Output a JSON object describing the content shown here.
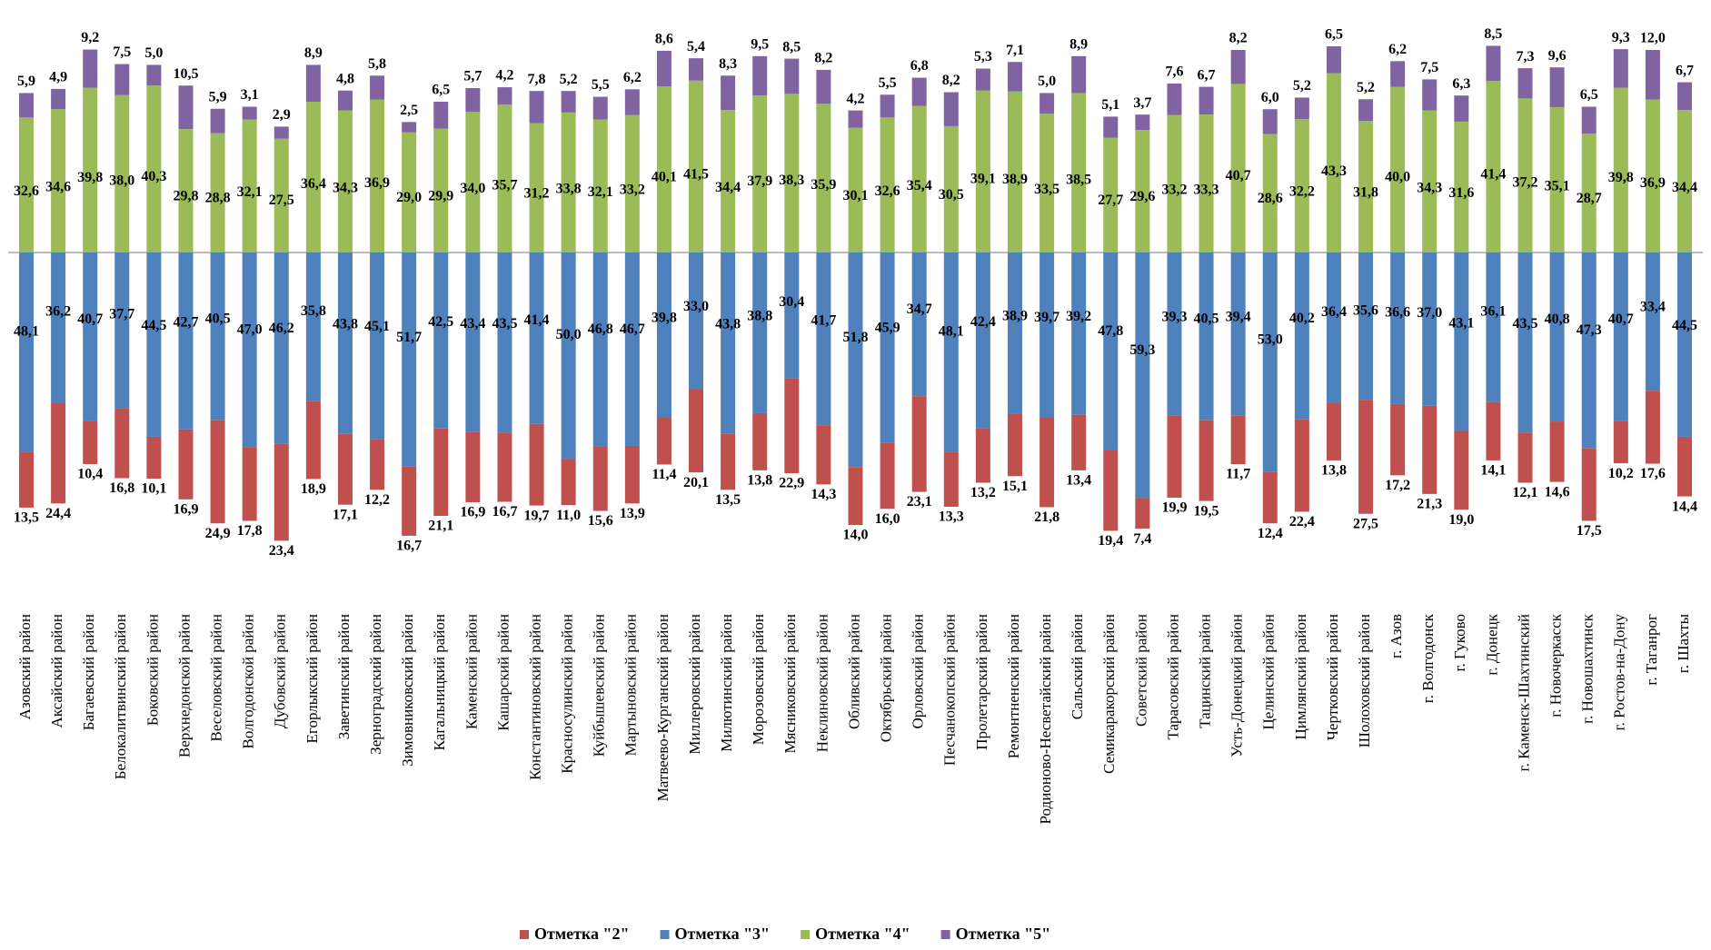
{
  "chart_data": {
    "type": "diverging-stacked-bar",
    "categories": [
      "Азовский район",
      "Аксайский район",
      "Багаевский район",
      "Белокалитвинский район",
      "Боковский район",
      "Верхнедонской район",
      "Веселовский район",
      "Волгодонской район",
      "Дубовский район",
      "Егорлыкский район",
      "Заветинский район",
      "Зерноградский район",
      "Зимовниковский район",
      "Кагальницкий район",
      "Каменский район",
      "Кашарский район",
      "Константиновский район",
      "Красносулинский район",
      "Куйбышевский район",
      "Мартыновский район",
      "Матвеево-Курганский район",
      "Миллеровский район",
      "Милютинский район",
      "Морозовский район",
      "Мясниковский район",
      "Неклиновский район",
      "Обливский район",
      "Октябрьский район",
      "Орловский район",
      "Песчанокопский район",
      "Пролетарский район",
      "Ремонтненский район",
      "Родионово-Несветайский район",
      "Сальский район",
      "Семикаракорский район",
      "Советский район",
      "Тарасовский район",
      "Тацинский район",
      "Усть-Донецкий район",
      "Целинский район",
      "Цимлянский район",
      "Чертковский район",
      "Шолоховский район",
      "г. Азов",
      "г. Волгодонск",
      "г. Гуково",
      "г. Донецк",
      "г. Каменск-Шахтинский",
      "г. Новочеркасск",
      "г. Новошахтинск",
      "г. Ростов-на-Дону",
      "г. Таганрог",
      "г. Шахты"
    ],
    "series": [
      {
        "name": "Отметка \"2\"",
        "color": "#c0504d",
        "values": [
          13.5,
          24.4,
          10.4,
          16.8,
          10.1,
          16.9,
          24.9,
          17.8,
          23.4,
          18.9,
          17.1,
          12.2,
          16.7,
          21.1,
          16.9,
          16.7,
          19.7,
          11.0,
          15.6,
          13.9,
          11.4,
          20.1,
          13.5,
          13.8,
          22.9,
          14.3,
          14.0,
          16.0,
          23.1,
          13.3,
          13.2,
          15.1,
          21.8,
          13.4,
          19.4,
          7.4,
          19.9,
          19.5,
          11.7,
          12.4,
          22.4,
          13.8,
          27.5,
          17.2,
          21.3,
          19.0,
          14.1,
          12.1,
          14.6,
          17.5,
          10.2,
          17.6,
          14.4
        ],
        "value_labels": [
          "13,5",
          "24,4",
          "10,4",
          "16,8",
          "10,1",
          "16,9",
          "24,9",
          "17,8",
          "23,4",
          "18,9",
          "17,1",
          "12,2",
          "16,7",
          "21,1",
          "16,9",
          "16,7",
          "19,7",
          "11,0",
          "15,6",
          "13,9",
          "11,4",
          "20,1",
          "13,5",
          "13,8",
          "22,9",
          "14,3",
          "14,0",
          "16,0",
          "23,1",
          "13,3",
          "13,2",
          "15,1",
          "21,8",
          "13,4",
          "19,4",
          "7,4",
          "19,9",
          "19,5",
          "11,7",
          "12,4",
          "22,4",
          "13,8",
          "27,5",
          "17,2",
          "21,3",
          "19,0",
          "14,1",
          "12,1",
          "14,6",
          "17,5",
          "10,2",
          "17,6",
          "14,4"
        ]
      },
      {
        "name": "Отметка \"3\"",
        "color": "#4f81bd",
        "values": [
          48.1,
          36.2,
          40.7,
          37.7,
          44.5,
          42.7,
          40.5,
          47.0,
          46.2,
          35.8,
          43.8,
          45.1,
          51.7,
          42.5,
          43.4,
          43.5,
          41.4,
          50.0,
          46.8,
          46.7,
          39.8,
          33.0,
          43.8,
          38.8,
          30.4,
          41.7,
          51.8,
          45.9,
          34.7,
          48.1,
          42.4,
          38.9,
          39.7,
          39.2,
          47.8,
          59.3,
          39.3,
          40.5,
          39.4,
          53.0,
          40.2,
          36.4,
          35.6,
          36.6,
          37.0,
          43.1,
          36.1,
          43.5,
          40.8,
          47.3,
          40.7,
          33.4,
          44.5
        ],
        "value_labels": [
          "48,1",
          "36,2",
          "40,7",
          "37,7",
          "44,5",
          "42,7",
          "40,5",
          "47,0",
          "46,2",
          "35,8",
          "43,8",
          "45,1",
          "51,7",
          "42,5",
          "43,4",
          "43,5",
          "41,4",
          "50,0",
          "46,8",
          "46,7",
          "39,8",
          "33,0",
          "43,8",
          "38,8",
          "30,4",
          "41,7",
          "51,8",
          "45,9",
          "34,7",
          "48,1",
          "42,4",
          "38,9",
          "39,7",
          "39,2",
          "47,8",
          "59,3",
          "39,3",
          "40,5",
          "39,4",
          "53,0",
          "40,2",
          "36,4",
          "35,6",
          "36,6",
          "37,0",
          "43,1",
          "36,1",
          "43,5",
          "40,8",
          "47,3",
          "40,7",
          "33,4",
          "44,5"
        ]
      },
      {
        "name": "Отметка \"4\"",
        "color": "#9bbb59",
        "values": [
          32.6,
          34.6,
          39.8,
          38.0,
          40.3,
          29.8,
          28.8,
          32.1,
          27.5,
          36.4,
          34.3,
          36.9,
          29.0,
          29.9,
          34.0,
          35.7,
          31.2,
          33.8,
          32.1,
          33.2,
          40.1,
          41.5,
          34.4,
          37.9,
          38.3,
          35.9,
          30.1,
          32.6,
          35.4,
          30.5,
          39.1,
          38.9,
          33.5,
          38.5,
          27.7,
          29.6,
          33.2,
          33.3,
          40.7,
          28.6,
          32.2,
          43.3,
          31.8,
          40.0,
          34.3,
          31.6,
          41.4,
          37.2,
          35.1,
          28.7,
          39.8,
          36.9,
          34.4
        ],
        "value_labels": [
          "32,6",
          "34,6",
          "39,8",
          "38,0",
          "40,3",
          "29,8",
          "28,8",
          "32,1",
          "27,5",
          "36,4",
          "34,3",
          "36,9",
          "29,0",
          "29,9",
          "34,0",
          "35,7",
          "31,2",
          "33,8",
          "32,1",
          "33,2",
          "40,1",
          "41,5",
          "34,4",
          "37,9",
          "38,3",
          "35,9",
          "30,1",
          "32,6",
          "35,4",
          "30,5",
          "39,1",
          "38,9",
          "33,5",
          "38,5",
          "27,7",
          "29,6",
          "33,2",
          "33,3",
          "40,7",
          "28,6",
          "32,2",
          "43,3",
          "31,8",
          "40,0",
          "34,3",
          "31,6",
          "41,4",
          "37,2",
          "35,1",
          "28,7",
          "39,8",
          "36,9",
          "34,4"
        ]
      },
      {
        "name": "Отметка \"5\"",
        "color": "#8064a2",
        "values": [
          5.9,
          4.9,
          9.2,
          7.5,
          5.0,
          10.5,
          5.9,
          3.1,
          2.9,
          8.9,
          4.8,
          5.8,
          2.5,
          6.5,
          5.7,
          4.2,
          7.8,
          5.2,
          5.5,
          6.2,
          8.6,
          5.4,
          8.3,
          9.5,
          8.5,
          8.2,
          4.2,
          5.5,
          6.8,
          8.2,
          5.3,
          7.1,
          5.0,
          8.9,
          5.1,
          3.7,
          7.6,
          6.7,
          8.2,
          6.0,
          5.2,
          6.5,
          5.2,
          6.2,
          7.5,
          6.3,
          8.5,
          7.3,
          9.6,
          6.5,
          9.3,
          12.0,
          6.7
        ],
        "value_labels": [
          "5,9",
          "4,9",
          "9,2",
          "7,5",
          "5,0",
          "10,5",
          "5,9",
          "3,1",
          "2,9",
          "8,9",
          "4,8",
          "5,8",
          "2,5",
          "6,5",
          "5,7",
          "4,2",
          "7,8",
          "5,2",
          "5,5",
          "6,2",
          "8,6",
          "5,4",
          "8,3",
          "9,5",
          "8,5",
          "8,2",
          "4,2",
          "5,5",
          "6,8",
          "8,2",
          "5,3",
          "7,1",
          "5,0",
          "8,9",
          "5,1",
          "3,7",
          "7,6",
          "6,7",
          "8,2",
          "6,0",
          "5,2",
          "6,5",
          "5,2",
          "6,2",
          "7,5",
          "6,3",
          "8,5",
          "7,3",
          "9,6",
          "6,5",
          "9,3",
          "12,0",
          "6,7"
        ]
      }
    ]
  }
}
